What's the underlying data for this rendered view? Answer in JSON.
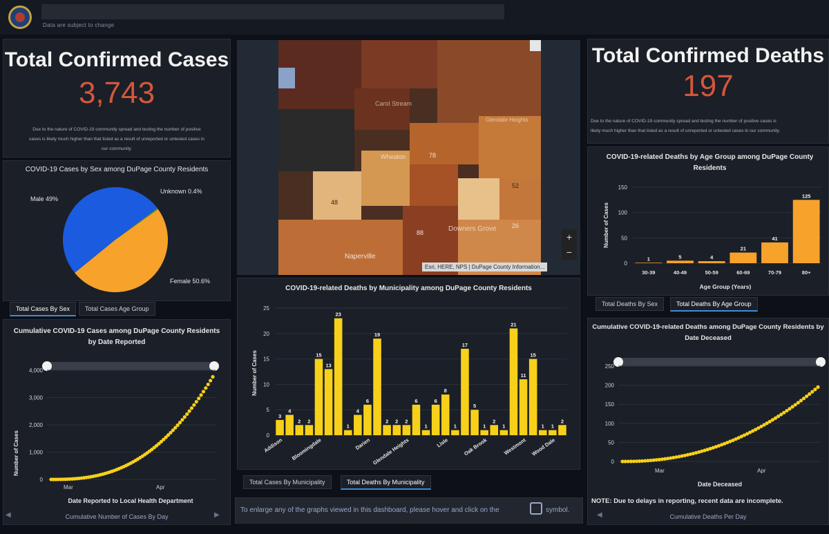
{
  "header": {
    "subtitle": "Data are subject to change"
  },
  "cases": {
    "title": "Total Confirmed Cases",
    "value": "3,743",
    "note_line1": "Due to the nature of COVID-19 community spread and testing the number of positive",
    "note_line2": "cases is likely much higher than that listed as a result of unreported or untested cases in",
    "note_line3": "our community."
  },
  "deaths": {
    "title": "Total Confirmed Deaths",
    "value": "197",
    "note_line1": "Due to the nature of COVID-19 community spread and testing the number of positive cases is",
    "note_line2": "likely much higher than that listed as a result of unreported or untested cases in our community."
  },
  "sex_panel": {
    "tabs": [
      "Total Cases By Sex",
      "Total Cases Age Group"
    ],
    "chart_data": {
      "type": "pie",
      "title": "COVID-19 Cases by Sex among DuPage County Residents",
      "categories": [
        "Male",
        "Female",
        "Unknown"
      ],
      "values": [
        49,
        50.6,
        0.4
      ],
      "labels": [
        "Male 49%",
        "Female 50.6%",
        "Unknown 0.4%"
      ],
      "colors": [
        "#f7a22b",
        "#1a5be0",
        "#5a8c3a"
      ]
    }
  },
  "cumulative_cases": {
    "footer": "Cumulative Number of Cases By Day",
    "chart_data": {
      "type": "line",
      "title": "Cumulative COVID-19 Cases among DuPage County Residents by Date Reported",
      "xlabel": "Date Reported to Local Health Department",
      "ylabel": "Number of Cases",
      "xticks": [
        "Mar",
        "Apr"
      ],
      "yticks": [
        "0",
        "1,000",
        "2,000",
        "3,000",
        "4,000"
      ],
      "ylim": [
        0,
        4000
      ],
      "color": "#f7d019"
    }
  },
  "map": {
    "attribution": "Esri, HERE, NPS | DuPage County Information...",
    "zoom_in": "+",
    "zoom_out": "−",
    "labels": [
      "Naperville",
      "Downers Grove",
      "Wheaton",
      "Carol Stream",
      "Glendale Heights",
      "48",
      "78",
      "52",
      "26",
      "88"
    ]
  },
  "municipality": {
    "tabs": [
      "Total Cases By Municipality",
      "Total Deaths By Municipality"
    ],
    "chart_data": {
      "type": "bar",
      "title": "COVID-19-related Deaths by Municipality among DuPage County Residents",
      "ylabel": "Number of Cases",
      "ylim": [
        0,
        25
      ],
      "yticks": [
        "0",
        "5",
        "10",
        "15",
        "20",
        "25"
      ],
      "values": [
        3,
        4,
        2,
        2,
        15,
        13,
        23,
        1,
        4,
        6,
        19,
        2,
        2,
        2,
        6,
        1,
        6,
        8,
        1,
        17,
        5,
        1,
        2,
        1,
        21,
        11,
        15,
        1,
        1,
        2
      ],
      "xticklabels": [
        "Addison",
        "Bloomingdale",
        "Darien",
        "Glendale Heights",
        "Lisle",
        "Oak Brook",
        "Westmont",
        "Wood Dale"
      ],
      "color": "#f7d019"
    }
  },
  "age_panel": {
    "tabs": [
      "Total Deaths By Sex",
      "Total Deaths By Age Group"
    ],
    "chart_data": {
      "type": "bar",
      "title": "COVID-19-related Deaths by Age Group among DuPage County Residents",
      "categories": [
        "30-39",
        "40-49",
        "50-59",
        "60-69",
        "70-79",
        "80+"
      ],
      "values": [
        1,
        5,
        4,
        21,
        41,
        125
      ],
      "xlabel": "Age Group (Years)",
      "ylabel": "Number of Cases",
      "ylim": [
        0,
        150
      ],
      "yticks": [
        "0",
        "50",
        "100",
        "150"
      ],
      "color": "#f7a22b"
    }
  },
  "cumulative_deaths": {
    "footer": "Cumulative Deaths Per Day",
    "note": "NOTE: Due to delays in reporting, recent data are incomplete.",
    "chart_data": {
      "type": "line",
      "title": "Cumulative COVID-19-related Deaths among DuPage County Residents by Date Deceased",
      "xlabel": "Date Deceased",
      "xticks": [
        "Mar",
        "Apr"
      ],
      "yticks": [
        "0",
        "50",
        "100",
        "150",
        "200",
        "250"
      ],
      "ylim": [
        0,
        250
      ],
      "color": "#f7d019"
    }
  },
  "enlarge": {
    "text_before": "To enlarge any of the graphs viewed in this dashboard, please hover and click on the",
    "text_after": "symbol."
  }
}
